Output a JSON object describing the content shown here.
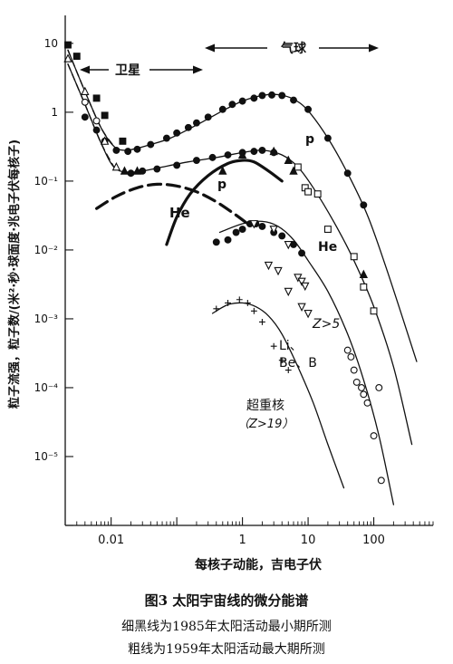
{
  "figure": {
    "caption_title": "图3  太阳宇宙线的微分能谱",
    "caption_line1": "细黑线为1985年太阳活动最小期所测",
    "caption_line2": "粗线为1959年太阳活动最大期所测"
  },
  "chart_data": {
    "type": "scatter",
    "xlabel": "每核子动能，吉电子伏",
    "ylabel": "粒子流强，粒子数/(米²·秒·球面度·兆电子伏每核子)",
    "x_scale": "log",
    "y_scale": "log",
    "xlim": [
      0.002,
      800
    ],
    "ylim": [
      1e-06,
      20
    ],
    "x_ticks": [
      {
        "value": 0.01,
        "label": "0.01"
      },
      {
        "value": 1,
        "label": "1"
      },
      {
        "value": 10,
        "label": "10"
      },
      {
        "value": 100,
        "label": "100"
      }
    ],
    "y_ticks": [
      {
        "value": 10,
        "label": "10"
      },
      {
        "value": 1,
        "label": "1"
      },
      {
        "value": 0.1,
        "label": "10⁻¹"
      },
      {
        "value": 0.01,
        "label": "10⁻²"
      },
      {
        "value": 0.001,
        "label": "10⁻³"
      },
      {
        "value": 0.0001,
        "label": "10⁻⁴"
      },
      {
        "value": 1e-05,
        "label": "10⁻⁵"
      }
    ],
    "grid": false,
    "annotations": {
      "satellite": "卫星",
      "balloon": "气球",
      "p": "p",
      "he": "He",
      "p_thick": "p",
      "he_thick": "He",
      "z5": "Z>5",
      "libeb": "Li、Be、B",
      "heavy": "超重核",
      "heavy_z": "（Z>19）"
    },
    "series": [
      {
        "label": "p",
        "kind": "curve",
        "style": "thin",
        "points": [
          [
            0.0022,
            8
          ],
          [
            0.004,
            2
          ],
          [
            0.007,
            0.6
          ],
          [
            0.011,
            0.32
          ],
          [
            0.016,
            0.28
          ],
          [
            0.025,
            0.3
          ],
          [
            0.04,
            0.34
          ],
          [
            0.08,
            0.42
          ],
          [
            0.2,
            0.65
          ],
          [
            0.5,
            1.05
          ],
          [
            1,
            1.45
          ],
          [
            2,
            1.75
          ],
          [
            3.5,
            1.8
          ],
          [
            6,
            1.55
          ],
          [
            10,
            1.05
          ],
          [
            20,
            0.42
          ],
          [
            40,
            0.13
          ],
          [
            80,
            0.032
          ],
          [
            150,
            0.006
          ],
          [
            300,
            0.0008
          ],
          [
            450,
            0.00024
          ]
        ]
      },
      {
        "label": "p",
        "kind": "curve",
        "style": "dashed",
        "points": [
          [
            0.0022,
            8
          ],
          [
            0.004,
            2
          ],
          [
            0.007,
            0.6
          ],
          [
            0.011,
            0.32
          ]
        ]
      },
      {
        "label": "He",
        "kind": "curve",
        "style": "thin",
        "points": [
          [
            0.0022,
            5
          ],
          [
            0.004,
            1.3
          ],
          [
            0.007,
            0.36
          ],
          [
            0.011,
            0.16
          ],
          [
            0.018,
            0.135
          ],
          [
            0.03,
            0.14
          ],
          [
            0.06,
            0.16
          ],
          [
            0.15,
            0.19
          ],
          [
            0.4,
            0.22
          ],
          [
            1,
            0.26
          ],
          [
            2,
            0.28
          ],
          [
            4,
            0.24
          ],
          [
            7,
            0.16
          ],
          [
            12,
            0.08
          ],
          [
            25,
            0.025
          ],
          [
            50,
            0.007
          ],
          [
            100,
            0.0015
          ],
          [
            200,
            0.0002
          ],
          [
            380,
            1.5e-05
          ]
        ]
      },
      {
        "label": "He",
        "kind": "curve",
        "style": "dashed",
        "points": [
          [
            0.0022,
            5
          ],
          [
            0.004,
            1.3
          ],
          [
            0.007,
            0.36
          ],
          [
            0.011,
            0.16
          ]
        ]
      },
      {
        "label": "Z>5",
        "kind": "curve",
        "style": "thin",
        "points": [
          [
            0.45,
            0.018
          ],
          [
            1,
            0.024
          ],
          [
            2,
            0.026
          ],
          [
            3.5,
            0.022
          ],
          [
            6,
            0.014
          ],
          [
            10,
            0.007
          ],
          [
            20,
            0.0025
          ],
          [
            40,
            0.0006
          ],
          [
            70,
            0.00013
          ],
          [
            120,
            2e-05
          ],
          [
            200,
            2e-06
          ]
        ]
      },
      {
        "label": "超重核",
        "kind": "curve",
        "style": "thin",
        "points": [
          [
            0.35,
            0.0012
          ],
          [
            0.6,
            0.0016
          ],
          [
            1,
            0.0017
          ],
          [
            1.6,
            0.0015
          ],
          [
            2.5,
            0.0011
          ],
          [
            4,
            0.0006
          ],
          [
            7,
            0.0002
          ],
          [
            12,
            6e-05
          ],
          [
            20,
            1.5e-05
          ],
          [
            35,
            3.5e-06
          ]
        ]
      },
      {
        "label": "p",
        "kind": "curve",
        "style": "thick",
        "points": [
          [
            0.07,
            0.012
          ],
          [
            0.1,
            0.03
          ],
          [
            0.16,
            0.065
          ],
          [
            0.3,
            0.12
          ],
          [
            0.6,
            0.18
          ],
          [
            1,
            0.2
          ],
          [
            1.5,
            0.19
          ],
          [
            2.5,
            0.14
          ],
          [
            4,
            0.1
          ]
        ]
      },
      {
        "label": "He",
        "kind": "curve",
        "style": "thick-dashed",
        "points": [
          [
            0.006,
            0.04
          ],
          [
            0.012,
            0.06
          ],
          [
            0.025,
            0.08
          ],
          [
            0.05,
            0.09
          ],
          [
            0.1,
            0.085
          ],
          [
            0.2,
            0.07
          ],
          [
            0.4,
            0.05
          ],
          [
            0.8,
            0.032
          ],
          [
            1.2,
            0.024
          ]
        ]
      },
      {
        "label": "p data",
        "kind": "points",
        "marker": "filled-circle",
        "points": [
          [
            0.004,
            0.85
          ],
          [
            0.006,
            0.55
          ],
          [
            0.008,
            0.38
          ],
          [
            0.012,
            0.28
          ],
          [
            0.018,
            0.27
          ],
          [
            0.025,
            0.29
          ],
          [
            0.04,
            0.34
          ],
          [
            0.07,
            0.42
          ],
          [
            0.1,
            0.5
          ],
          [
            0.15,
            0.6
          ],
          [
            0.2,
            0.7
          ],
          [
            0.3,
            0.85
          ],
          [
            0.5,
            1.1
          ],
          [
            0.7,
            1.3
          ],
          [
            1,
            1.45
          ],
          [
            1.5,
            1.6
          ],
          [
            2,
            1.75
          ],
          [
            2.8,
            1.78
          ],
          [
            4,
            1.75
          ],
          [
            6,
            1.5
          ],
          [
            10,
            1.1
          ],
          [
            20,
            0.42
          ],
          [
            40,
            0.13
          ],
          [
            70,
            0.045
          ]
        ]
      },
      {
        "label": "p satellite data",
        "kind": "points",
        "marker": "filled-square",
        "points": [
          [
            0.0022,
            9.5
          ],
          [
            0.003,
            6.5
          ],
          [
            0.006,
            1.6
          ],
          [
            0.008,
            0.9
          ],
          [
            0.015,
            0.38
          ]
        ]
      },
      {
        "label": "He data",
        "kind": "points",
        "marker": "filled-circle",
        "points": [
          [
            0.02,
            0.13
          ],
          [
            0.03,
            0.14
          ],
          [
            0.05,
            0.15
          ],
          [
            0.1,
            0.17
          ],
          [
            0.2,
            0.2
          ],
          [
            0.35,
            0.22
          ],
          [
            0.6,
            0.24
          ],
          [
            1,
            0.26
          ],
          [
            1.5,
            0.27
          ],
          [
            2,
            0.28
          ],
          [
            3,
            0.26
          ]
        ]
      },
      {
        "label": "He triangles",
        "kind": "points",
        "marker": "filled-triangle",
        "points": [
          [
            0.016,
            0.14
          ],
          [
            0.025,
            0.14
          ],
          [
            0.5,
            0.14
          ],
          [
            1,
            0.24
          ],
          [
            3,
            0.27
          ],
          [
            5,
            0.2
          ],
          [
            6,
            0.14
          ],
          [
            70,
            0.0044
          ]
        ]
      },
      {
        "label": "He satellite open",
        "kind": "points",
        "marker": "open-triangle",
        "points": [
          [
            0.0022,
            6
          ],
          [
            0.004,
            2
          ],
          [
            0.008,
            0.38
          ],
          [
            0.012,
            0.16
          ]
        ]
      },
      {
        "label": "He open circles",
        "kind": "points",
        "marker": "open-circle",
        "points": [
          [
            0.004,
            1.4
          ],
          [
            0.006,
            0.75
          ],
          [
            120,
            0.0001
          ]
        ]
      },
      {
        "label": "He squares",
        "kind": "points",
        "marker": "open-square",
        "points": [
          [
            7,
            0.16
          ],
          [
            9,
            0.08
          ],
          [
            10,
            0.07
          ],
          [
            14,
            0.065
          ],
          [
            20,
            0.02
          ],
          [
            50,
            0.008
          ],
          [
            70,
            0.0029
          ],
          [
            100,
            0.0013
          ]
        ]
      },
      {
        "label": "Z>5 data",
        "kind": "points",
        "marker": "filled-circle",
        "points": [
          [
            0.4,
            0.013
          ],
          [
            0.6,
            0.014
          ],
          [
            0.8,
            0.018
          ],
          [
            1,
            0.02
          ],
          [
            1.3,
            0.024
          ],
          [
            1.6,
            0.024
          ],
          [
            2,
            0.022
          ],
          [
            3,
            0.018
          ],
          [
            4,
            0.016
          ],
          [
            6,
            0.012
          ],
          [
            8,
            0.009
          ]
        ]
      },
      {
        "label": "Z>5 open triangles",
        "kind": "points",
        "marker": "open-down-triangle",
        "points": [
          [
            1.5,
            0.024
          ],
          [
            3,
            0.02
          ],
          [
            5,
            0.012
          ],
          [
            2.5,
            0.006
          ],
          [
            3.5,
            0.005
          ],
          [
            7,
            0.004
          ],
          [
            5,
            0.0025
          ],
          [
            8,
            0.0015
          ],
          [
            10,
            0.0012
          ],
          [
            8,
            0.0035
          ],
          [
            9,
            0.003
          ]
        ]
      },
      {
        "label": "Li Be B data",
        "kind": "points",
        "marker": "open-circle",
        "points": [
          [
            40,
            0.00035
          ],
          [
            45,
            0.00028
          ],
          [
            50,
            0.00018
          ],
          [
            55,
            0.00012
          ],
          [
            65,
            0.0001
          ],
          [
            70,
            8e-05
          ],
          [
            80,
            6e-05
          ],
          [
            100,
            2e-05
          ],
          [
            130,
            4.5e-06
          ]
        ]
      },
      {
        "label": "超重核 data",
        "kind": "points",
        "marker": "plus",
        "points": [
          [
            0.4,
            0.0014
          ],
          [
            0.6,
            0.0017
          ],
          [
            0.9,
            0.0019
          ],
          [
            1.2,
            0.0017
          ],
          [
            1.5,
            0.0013
          ],
          [
            2,
            0.0009
          ],
          [
            3,
            0.0004
          ],
          [
            4,
            0.00025
          ],
          [
            5,
            0.00018
          ]
        ]
      }
    ]
  }
}
